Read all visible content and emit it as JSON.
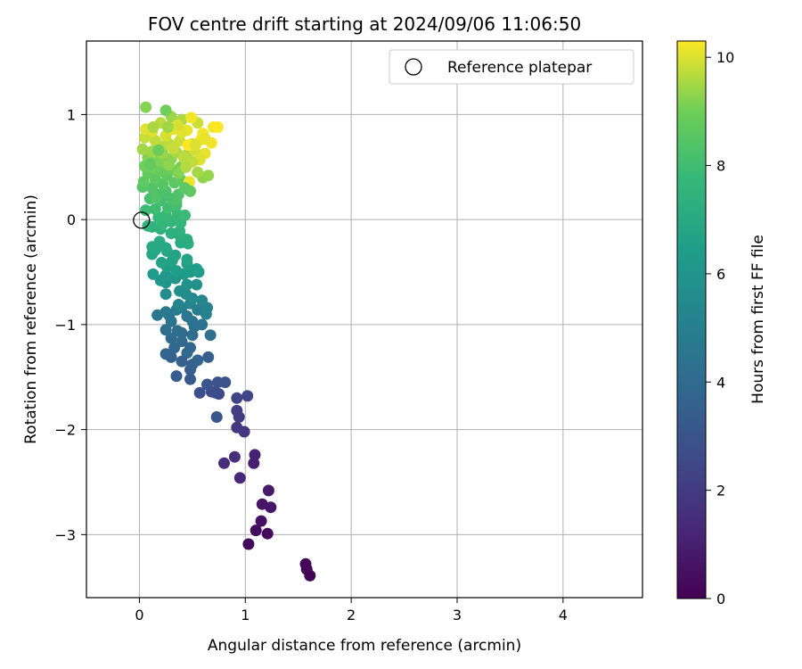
{
  "chart_data": {
    "type": "scatter",
    "title": "FOV centre drift starting at 2024/09/06 11:06:50",
    "xlabel": "Angular distance from reference (arcmin)",
    "ylabel": "Rotation from reference (arcmin)",
    "xlim": [
      -0.5,
      4.75
    ],
    "ylim": [
      -3.6,
      1.7
    ],
    "x_ticks": [
      0,
      1,
      2,
      3,
      4
    ],
    "y_ticks": [
      -3,
      -2,
      -1,
      0,
      1
    ],
    "grid": true,
    "legend": {
      "placement": "top-right",
      "entries": [
        "Reference platepar"
      ]
    },
    "reference_point": {
      "x": 0,
      "y": 0,
      "label": "Reference platepar"
    },
    "colorbar": {
      "label": "Hours from first FF file",
      "range": [
        0,
        10.3
      ],
      "ticks": [
        0,
        2,
        4,
        6,
        8,
        10
      ],
      "colormap": "viridis"
    },
    "series": [
      {
        "points": [
          [
            1.61,
            -3.39,
            0.05
          ],
          [
            1.58,
            -3.33,
            0.1
          ],
          [
            1.57,
            -3.28,
            0.15
          ],
          [
            1.03,
            -3.09,
            0.2
          ],
          [
            1.21,
            -2.99,
            0.3
          ],
          [
            1.1,
            -2.96,
            0.35
          ],
          [
            1.15,
            -2.87,
            0.5
          ],
          [
            1.16,
            -2.71,
            0.6
          ],
          [
            1.24,
            -2.74,
            0.7
          ],
          [
            1.22,
            -2.58,
            0.8
          ],
          [
            1.08,
            -2.32,
            1.0
          ],
          [
            1.09,
            -2.24,
            1.1
          ],
          [
            0.95,
            -2.46,
            1.3
          ],
          [
            0.8,
            -2.32,
            1.5
          ],
          [
            0.9,
            -2.26,
            1.6
          ],
          [
            0.99,
            -2.02,
            1.8
          ],
          [
            0.92,
            -1.98,
            1.9
          ],
          [
            0.94,
            -1.88,
            2.0
          ],
          [
            0.92,
            -1.82,
            2.1
          ],
          [
            0.92,
            -1.7,
            2.3
          ],
          [
            1.02,
            -1.68,
            2.4
          ],
          [
            0.75,
            -1.66,
            2.5
          ],
          [
            0.72,
            -1.65,
            2.6
          ],
          [
            0.68,
            -1.64,
            2.7
          ],
          [
            0.57,
            -1.65,
            2.8
          ],
          [
            0.74,
            -1.55,
            2.9
          ],
          [
            0.81,
            -1.55,
            3.0
          ],
          [
            0.64,
            -1.57,
            3.05
          ],
          [
            0.73,
            -1.88,
            3.1
          ],
          [
            0.48,
            -1.52,
            3.2
          ],
          [
            0.35,
            -1.49,
            3.3
          ],
          [
            0.48,
            -1.43,
            3.4
          ],
          [
            0.65,
            -1.31,
            3.5
          ],
          [
            0.5,
            -1.38,
            3.55
          ],
          [
            0.4,
            -1.35,
            3.6
          ],
          [
            0.3,
            -1.31,
            3.65
          ],
          [
            0.25,
            -1.28,
            3.7
          ],
          [
            0.55,
            -1.34,
            3.75
          ],
          [
            0.45,
            -1.27,
            3.8
          ],
          [
            0.33,
            -1.22,
            3.85
          ],
          [
            0.48,
            -1.22,
            3.9
          ],
          [
            0.4,
            -1.16,
            3.95
          ],
          [
            0.3,
            -1.13,
            4.0
          ],
          [
            0.4,
            -1.08,
            4.05
          ],
          [
            0.5,
            -1.1,
            4.1
          ],
          [
            0.36,
            -1.06,
            4.15
          ],
          [
            0.25,
            -1.05,
            4.2
          ],
          [
            0.67,
            -1.1,
            4.25
          ],
          [
            0.52,
            -1.02,
            4.3
          ],
          [
            0.59,
            -1.0,
            4.35
          ],
          [
            0.5,
            -0.97,
            4.4
          ],
          [
            0.3,
            -0.97,
            4.45
          ],
          [
            0.45,
            -0.92,
            4.5
          ],
          [
            0.28,
            -0.91,
            4.55
          ],
          [
            0.17,
            -0.91,
            4.6
          ],
          [
            0.25,
            -0.88,
            4.7
          ],
          [
            0.35,
            -0.86,
            4.8
          ],
          [
            0.55,
            -0.86,
            4.9
          ],
          [
            0.4,
            -0.84,
            5.0
          ],
          [
            0.63,
            -0.9,
            5.1
          ],
          [
            0.64,
            -0.84,
            5.15
          ],
          [
            0.48,
            -0.8,
            5.2
          ],
          [
            0.37,
            -0.81,
            5.3
          ],
          [
            0.59,
            -0.77,
            5.4
          ],
          [
            0.5,
            -0.75,
            5.5
          ],
          [
            0.44,
            -0.71,
            5.55
          ],
          [
            0.25,
            -0.71,
            5.6
          ],
          [
            0.38,
            -0.68,
            5.7
          ],
          [
            0.54,
            -0.62,
            5.8
          ],
          [
            0.45,
            -0.62,
            5.9
          ],
          [
            0.25,
            -0.6,
            6.0
          ],
          [
            0.2,
            -0.58,
            6.05
          ],
          [
            0.34,
            -0.56,
            6.1
          ],
          [
            0.25,
            -0.53,
            6.15
          ],
          [
            0.42,
            -0.52,
            6.2
          ],
          [
            0.13,
            -0.52,
            6.25
          ],
          [
            0.56,
            -0.5,
            6.3
          ],
          [
            0.48,
            -0.5,
            6.35
          ],
          [
            0.35,
            -0.49,
            6.4
          ],
          [
            0.54,
            -0.47,
            6.45
          ],
          [
            0.26,
            -0.45,
            6.5
          ],
          [
            0.45,
            -0.42,
            6.55
          ],
          [
            0.31,
            -0.39,
            6.6
          ],
          [
            0.45,
            -0.38,
            6.65
          ],
          [
            0.21,
            -0.41,
            6.7
          ],
          [
            0.34,
            -0.34,
            6.75
          ],
          [
            0.26,
            -0.3,
            6.8
          ],
          [
            0.12,
            -0.33,
            6.85
          ],
          [
            0.15,
            -0.29,
            6.9
          ],
          [
            0.25,
            -0.27,
            6.95
          ],
          [
            0.12,
            -0.26,
            7.0
          ],
          [
            0.19,
            -0.21,
            7.05
          ],
          [
            0.39,
            -0.22,
            7.1
          ],
          [
            0.45,
            -0.19,
            7.15
          ],
          [
            0.46,
            -0.23,
            7.2
          ],
          [
            0.38,
            -0.15,
            7.25
          ],
          [
            0.3,
            -0.13,
            7.3
          ],
          [
            0.38,
            -0.11,
            7.35
          ],
          [
            0.2,
            -0.09,
            7.4
          ],
          [
            0.12,
            -0.07,
            7.45
          ],
          [
            0.08,
            -0.06,
            7.5
          ],
          [
            0.22,
            -0.04,
            7.55
          ],
          [
            0.3,
            -0.02,
            7.6
          ],
          [
            0.39,
            -0.03,
            7.65
          ],
          [
            0.18,
            0.02,
            7.7
          ],
          [
            0.25,
            0.04,
            7.75
          ],
          [
            0.36,
            0.05,
            7.8
          ],
          [
            0.43,
            0.04,
            7.85
          ],
          [
            0.06,
            0.09,
            7.9
          ],
          [
            0.15,
            0.1,
            7.95
          ],
          [
            0.27,
            0.11,
            8.0
          ],
          [
            0.35,
            0.14,
            8.05
          ],
          [
            0.2,
            0.18,
            8.1
          ],
          [
            0.1,
            0.2,
            8.15
          ],
          [
            0.3,
            0.2,
            8.2
          ],
          [
            0.18,
            0.24,
            8.25
          ],
          [
            0.25,
            0.27,
            8.3
          ],
          [
            0.37,
            0.24,
            8.35
          ],
          [
            0.12,
            0.3,
            8.4
          ],
          [
            0.03,
            0.31,
            8.45
          ],
          [
            0.22,
            0.34,
            8.5
          ],
          [
            0.33,
            0.35,
            8.55
          ],
          [
            0.15,
            0.38,
            8.6
          ],
          [
            0.04,
            0.36,
            8.65
          ],
          [
            0.26,
            0.42,
            8.7
          ],
          [
            0.39,
            0.38,
            8.75
          ],
          [
            0.08,
            0.44,
            8.8
          ],
          [
            0.2,
            0.46,
            8.85
          ],
          [
            0.31,
            0.47,
            8.9
          ],
          [
            0.14,
            0.49,
            8.95
          ],
          [
            0.05,
            0.51,
            9.0
          ],
          [
            0.25,
            0.53,
            9.05
          ],
          [
            0.39,
            0.5,
            9.1
          ],
          [
            0.18,
            0.56,
            9.15
          ],
          [
            0.08,
            0.59,
            9.2
          ],
          [
            0.3,
            0.58,
            9.25
          ],
          [
            0.6,
            0.4,
            9.3
          ],
          [
            0.65,
            0.42,
            9.35
          ],
          [
            0.22,
            0.63,
            9.4
          ],
          [
            0.12,
            0.65,
            9.45
          ],
          [
            0.03,
            0.67,
            9.5
          ],
          [
            0.35,
            0.64,
            9.55
          ],
          [
            0.45,
            0.62,
            9.6
          ],
          [
            0.2,
            0.7,
            9.65
          ],
          [
            0.28,
            0.72,
            9.7
          ],
          [
            0.15,
            0.75,
            9.75
          ],
          [
            0.05,
            0.78,
            9.8
          ],
          [
            0.38,
            0.75,
            9.85
          ],
          [
            0.5,
            0.72,
            9.9
          ],
          [
            0.25,
            0.8,
            9.95
          ],
          [
            0.12,
            0.84,
            10.0
          ],
          [
            0.06,
            0.86,
            10.05
          ],
          [
            0.32,
            0.86,
            10.1
          ],
          [
            0.45,
            0.85,
            10.15
          ],
          [
            0.6,
            0.82,
            10.2
          ],
          [
            0.7,
            0.88,
            10.25
          ],
          [
            0.74,
            0.88,
            10.3
          ],
          [
            0.55,
            0.92,
            9.85
          ],
          [
            0.4,
            0.95,
            9.6
          ],
          [
            0.3,
            0.98,
            9.4
          ],
          [
            0.25,
            1.04,
            9.0
          ],
          [
            0.06,
            1.07,
            9.2
          ],
          [
            0.49,
            0.97,
            10.2
          ],
          [
            0.62,
            0.63,
            10.1
          ],
          [
            0.57,
            0.57,
            10.0
          ],
          [
            0.52,
            0.66,
            9.9
          ],
          [
            0.46,
            0.71,
            10.3
          ],
          [
            0.58,
            0.76,
            10.25
          ],
          [
            0.42,
            0.59,
            9.7
          ],
          [
            0.32,
            0.68,
            9.8
          ],
          [
            0.47,
            0.36,
            10.15
          ],
          [
            0.55,
            0.45,
            9.5
          ],
          [
            0.28,
            0.52,
            9.3
          ],
          [
            0.37,
            0.44,
            9.2
          ],
          [
            0.18,
            0.66,
            8.9
          ],
          [
            0.1,
            0.53,
            8.8
          ],
          [
            0.48,
            0.27,
            8.7
          ],
          [
            0.43,
            0.3,
            8.6
          ],
          [
            0.16,
            0.21,
            8.4
          ],
          [
            0.35,
            0.18,
            8.3
          ],
          [
            0.53,
            0.71,
            10.0
          ],
          [
            0.68,
            0.73,
            10.2
          ],
          [
            0.62,
            0.77,
            10.1
          ],
          [
            0.4,
            0.83,
            10.05
          ],
          [
            0.36,
            0.9,
            9.95
          ],
          [
            0.2,
            0.92,
            9.7
          ],
          [
            0.13,
            0.88,
            9.55
          ],
          [
            0.27,
            0.88,
            9.45
          ],
          [
            0.5,
            0.55,
            9.75
          ],
          [
            0.44,
            0.5,
            9.65
          ]
        ]
      }
    ]
  }
}
